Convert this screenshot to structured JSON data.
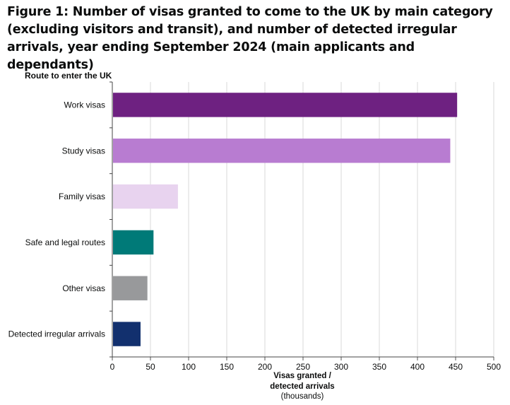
{
  "figure": {
    "title": "Figure 1: Number of visas granted to come to the UK by main category (excluding visitors and transit), and number of detected irregular arrivals, year ending September 2024 (main applicants and dependants)"
  },
  "chart_data": {
    "type": "bar",
    "orientation": "horizontal",
    "title": "Figure 1: Number of visas granted to come to the UK by main category (excluding visitors and transit), and number of detected irregular arrivals, year ending September 2024 (main applicants and dependants)",
    "ylabel": "Route to enter the UK",
    "xlabel_lines": [
      "Visas granted /",
      "detected arrivals"
    ],
    "xunit": "(thousands)",
    "xlim": [
      0,
      500
    ],
    "xticks": [
      0,
      50,
      100,
      150,
      200,
      250,
      300,
      350,
      400,
      450,
      500
    ],
    "grid": "vertical",
    "categories": [
      "Work visas",
      "Study visas",
      "Family visas",
      "Safe and legal routes",
      "Other visas",
      "Detected irregular arrivals"
    ],
    "values": [
      452,
      443,
      86,
      54,
      46,
      37
    ],
    "colors": [
      "#6e2181",
      "#b87cd1",
      "#e8d3ef",
      "#007a78",
      "#98999b",
      "#12306e"
    ]
  }
}
